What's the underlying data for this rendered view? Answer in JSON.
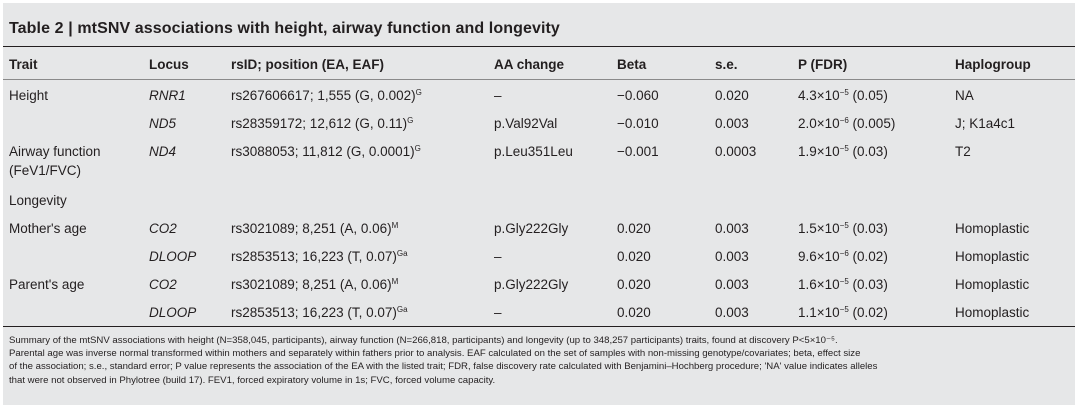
{
  "table": {
    "title_label": "Table 2 | ",
    "title_text": "mtSNV associations with height, airway function and longevity",
    "headers": {
      "trait": "Trait",
      "locus": "Locus",
      "rsid": "rsID; position (EA, EAF)",
      "aa_change": "AA change",
      "beta": "Beta",
      "se": "s.e.",
      "p_fdr": "P (FDR)",
      "haplogroup": "Haplogroup"
    },
    "rows": [
      {
        "trait": "Height",
        "trait2": "",
        "locus": "RNR1",
        "rsid": "rs267606617; 1,555 (G, 0.002)",
        "rsid_sup": "G",
        "aa": "–",
        "beta": "−0.060",
        "se": "0.020",
        "p_base": "4.3×10",
        "p_exp": "−5",
        "p_fdr": " (0.05)",
        "haplo": "NA"
      },
      {
        "trait": "",
        "trait2": "",
        "locus": "ND5",
        "rsid": "rs28359172; 12,612 (G, 0.11)",
        "rsid_sup": "G",
        "aa": "p.Val92Val",
        "beta": "−0.010",
        "se": "0.003",
        "p_base": "2.0×10",
        "p_exp": "−6",
        "p_fdr": " (0.005)",
        "haplo": "J; K1a4c1"
      },
      {
        "trait": "Airway function",
        "trait2": "(FeV1/FVC)",
        "locus": "ND4",
        "rsid": "rs3088053; 11,812 (G, 0.0001)",
        "rsid_sup": "G",
        "aa": "p.Leu351Leu",
        "beta": "−0.001",
        "se": "0.0003",
        "p_base": "1.9×10",
        "p_exp": "−5",
        "p_fdr": " (0.03)",
        "haplo": "T2"
      },
      {
        "trait": "Longevity",
        "trait2": "",
        "locus": "",
        "rsid": "",
        "rsid_sup": "",
        "aa": "",
        "beta": "",
        "se": "",
        "p_base": "",
        "p_exp": "",
        "p_fdr": "",
        "haplo": ""
      },
      {
        "trait": "Mother's age",
        "trait2": "",
        "locus": "CO2",
        "rsid": "rs3021089; 8,251 (A, 0.06)",
        "rsid_sup": "M",
        "aa": "p.Gly222Gly",
        "beta": "0.020",
        "se": "0.003",
        "p_base": "1.5×10",
        "p_exp": "−5",
        "p_fdr": " (0.03)",
        "haplo": "Homoplastic"
      },
      {
        "trait": "",
        "trait2": "",
        "locus": "DLOOP",
        "rsid": "rs2853513; 16,223 (T, 0.07)",
        "rsid_sup": "Ga",
        "aa": "–",
        "beta": "0.020",
        "se": "0.003",
        "p_base": "9.6×10",
        "p_exp": "−6",
        "p_fdr": " (0.02)",
        "haplo": "Homoplastic"
      },
      {
        "trait": "Parent's age",
        "trait2": "",
        "locus": "CO2",
        "rsid": "rs3021089; 8,251 (A, 0.06)",
        "rsid_sup": "M",
        "aa": "p.Gly222Gly",
        "beta": "0.020",
        "se": "0.003",
        "p_base": "1.6×10",
        "p_exp": "−5",
        "p_fdr": " (0.03)",
        "haplo": "Homoplastic"
      },
      {
        "trait": "",
        "trait2": "",
        "locus": "DLOOP",
        "rsid": "rs2853513; 16,223 (T, 0.07)",
        "rsid_sup": "Ga",
        "aa": "–",
        "beta": "0.020",
        "se": "0.003",
        "p_base": "1.1×10",
        "p_exp": "−5",
        "p_fdr": " (0.02)",
        "haplo": "Homoplastic"
      }
    ],
    "footnote_lines": [
      "Summary of the mtSNV associations with height (N=358,045, participants), airway function (N=266,818, participants) and longevity (up to 348,257 participants) traits, found at discovery P<5×10⁻⁵.",
      "Parental age was inverse normal transformed within mothers and separately within fathers prior to analysis. EAF calculated on the set of samples with non-missing genotype/covariates; beta, effect size",
      "of the association; s.e., standard error; P value represents the association of the EA with the listed trait; FDR, false discovery rate calculated with Benjamini–Hochberg procedure; 'NA' value indicates alleles",
      "that were not observed in Phylotree (build 17). FEV1, forced expiratory volume in 1s; FVC, forced volume capacity."
    ]
  }
}
